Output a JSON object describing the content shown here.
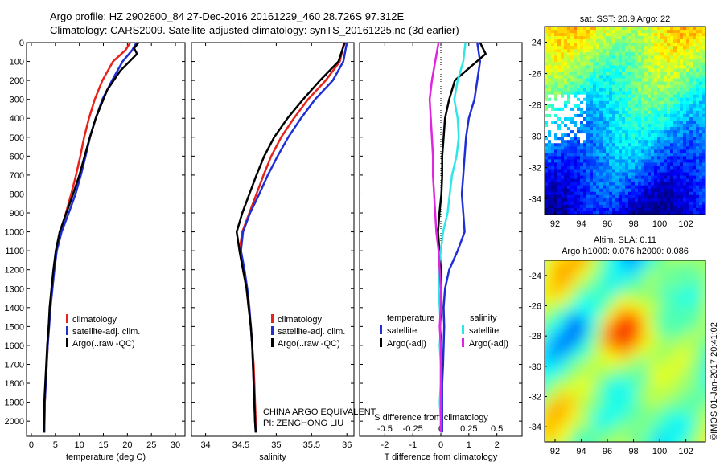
{
  "header": {
    "line1": "Argo profile: HZ 2902600_84 27-Dec-2016 20161229_460 28.726S 97.312E",
    "line2": "Climatology: CARS2009. Satellite-adjusted climatology: synTS_20161225.nc (3d earlier)"
  },
  "colors": {
    "red": "#e8231c",
    "blue": "#1f2fd6",
    "black": "#000000",
    "cyan": "#2ee6e6",
    "magenta": "#e024e0"
  },
  "chart_data": [
    {
      "type": "line",
      "title": "",
      "xlabel": "temperature (deg C)",
      "ylabel": "",
      "xlim": [
        -1,
        32
      ],
      "ylim": [
        2080,
        0
      ],
      "y_inverted": true,
      "x_ticks": [
        0,
        5,
        10,
        15,
        20,
        25,
        30
      ],
      "y_ticks": [
        0,
        100,
        200,
        300,
        400,
        500,
        600,
        700,
        800,
        900,
        1000,
        1100,
        1200,
        1300,
        1400,
        1500,
        1600,
        1700,
        1800,
        1900,
        2000
      ],
      "legend": {
        "position": "lower-center",
        "entries": [
          "climatology",
          "satellite-adj. clim.",
          "Argo(..raw -QC)"
        ]
      },
      "series": [
        {
          "name": "climatology",
          "color": "red",
          "x": [
            20.6,
            19.6,
            17.0,
            14.8,
            13.2,
            12.0,
            11.0,
            10.2,
            9.3,
            8.3,
            7.2,
            6.0,
            5.2,
            4.7,
            4.3,
            3.9,
            3.6,
            3.4,
            3.2,
            3.0,
            2.8,
            2.7
          ],
          "y": [
            0,
            40,
            100,
            200,
            300,
            400,
            500,
            600,
            700,
            800,
            900,
            1000,
            1100,
            1200,
            1300,
            1400,
            1500,
            1600,
            1700,
            1800,
            1900,
            2060
          ]
        },
        {
          "name": "satellite-adj. clim.",
          "color": "blue",
          "x": [
            21.9,
            21.0,
            19.0,
            16.8,
            14.8,
            13.4,
            12.2,
            11.3,
            10.3,
            9.2,
            7.8,
            6.3,
            5.3,
            4.8,
            4.4,
            4.0,
            3.7,
            3.4,
            3.2,
            3.0,
            2.8,
            2.7
          ],
          "y": [
            0,
            40,
            100,
            200,
            300,
            400,
            500,
            600,
            700,
            800,
            900,
            1000,
            1100,
            1200,
            1300,
            1400,
            1500,
            1600,
            1700,
            1800,
            1900,
            2060
          ]
        },
        {
          "name": "Argo(..raw -QC)",
          "color": "black",
          "x": [
            22.3,
            21.4,
            22.0,
            18.5,
            15.8,
            13.4,
            12.2,
            11.1,
            10.0,
            8.7,
            7.3,
            5.9,
            5.1,
            4.6,
            4.2,
            3.8,
            3.6,
            3.3,
            3.1,
            2.9,
            2.7,
            2.6
          ],
          "y": [
            0,
            30,
            60,
            150,
            250,
            400,
            500,
            600,
            700,
            800,
            900,
            1000,
            1100,
            1200,
            1300,
            1400,
            1500,
            1600,
            1700,
            1800,
            1900,
            2060
          ]
        }
      ]
    },
    {
      "type": "line",
      "title": "",
      "xlabel": "salinity",
      "ylabel": "",
      "xlim": [
        33.8,
        36.1
      ],
      "ylim": [
        2080,
        0
      ],
      "y_inverted": true,
      "x_ticks": [
        34,
        34.5,
        35,
        35.5,
        36
      ],
      "x_tick_labels": [
        "34",
        "34.5",
        "35",
        "35.5",
        "36"
      ],
      "legend": {
        "position": "lower-center",
        "entries": [
          "climatology",
          "satellite-adj. clim.",
          "Argo(..raw -QC)"
        ]
      },
      "annotations": [
        "CHINA ARGO EQUIVALENT",
        "PI: ZENGHONG LIU"
      ],
      "series": [
        {
          "name": "climatology",
          "color": "red",
          "x": [
            35.96,
            35.9,
            35.7,
            35.45,
            35.25,
            35.07,
            34.93,
            34.82,
            34.72,
            34.62,
            34.52,
            34.48,
            34.53,
            34.58,
            34.61,
            34.64,
            34.66,
            34.68,
            34.69,
            34.7,
            34.71,
            34.72
          ],
          "y": [
            0,
            100,
            200,
            300,
            400,
            500,
            600,
            700,
            800,
            900,
            1000,
            1100,
            1200,
            1300,
            1400,
            1500,
            1600,
            1700,
            1800,
            1900,
            2000,
            2060
          ]
        },
        {
          "name": "satellite-adj. clim.",
          "color": "blue",
          "x": [
            36.0,
            35.95,
            35.8,
            35.55,
            35.35,
            35.17,
            35.02,
            34.88,
            34.76,
            34.63,
            34.53,
            34.5,
            34.55,
            34.59,
            34.62,
            34.64,
            34.66,
            34.67,
            34.68,
            34.69,
            34.7,
            34.71
          ],
          "y": [
            0,
            100,
            200,
            300,
            400,
            500,
            600,
            700,
            800,
            900,
            1000,
            1100,
            1200,
            1300,
            1400,
            1500,
            1600,
            1700,
            1800,
            1900,
            2000,
            2060
          ]
        },
        {
          "name": "Argo(..raw -QC)",
          "color": "black",
          "x": [
            35.97,
            35.88,
            35.62,
            35.38,
            35.16,
            34.97,
            34.83,
            34.72,
            34.62,
            34.52,
            34.44,
            34.48,
            34.53,
            34.58,
            34.61,
            34.64,
            34.66,
            34.67,
            34.68,
            34.69,
            34.7,
            34.71
          ],
          "y": [
            0,
            100,
            200,
            300,
            400,
            500,
            600,
            700,
            800,
            900,
            1000,
            1100,
            1200,
            1300,
            1400,
            1500,
            1600,
            1700,
            1800,
            1900,
            2000,
            2060
          ]
        }
      ]
    },
    {
      "type": "line",
      "title": "",
      "xlabel": "T difference from climatology",
      "xlabel_top": "S difference from climatology",
      "ylabel": "",
      "xlim": [
        -2.9,
        2.9
      ],
      "ylim": [
        2080,
        0
      ],
      "y_inverted": true,
      "x_ticks": [
        -2,
        -1,
        0,
        1,
        2
      ],
      "x_ticks_top": [
        -0.5,
        -0.25,
        0,
        0.25,
        0.5
      ],
      "x_tick_labels_top": [
        "-0.5",
        "-0.25",
        "0",
        "0.25",
        "0.5"
      ],
      "legend": {
        "position": "lower-center",
        "entries": [
          "temperature",
          "satellite",
          "Argo(-adj)",
          "salinity",
          "satellite",
          "Argo(-adj)"
        ]
      },
      "series": [
        {
          "name": "satellite",
          "group": "temperature",
          "color": "blue",
          "x": [
            1.3,
            1.4,
            1.3,
            1.2,
            1.0,
            0.9,
            0.85,
            0.8,
            0.75,
            0.8,
            0.85,
            0.6,
            0.3,
            0.15,
            0.1,
            0.12,
            0.1,
            0.08,
            0.05,
            0.05,
            0.05,
            0.05
          ],
          "y": [
            0,
            100,
            200,
            300,
            400,
            500,
            600,
            700,
            800,
            900,
            1000,
            1100,
            1200,
            1300,
            1400,
            1500,
            1600,
            1700,
            1800,
            1900,
            2000,
            2060
          ]
        },
        {
          "name": "Argo(-adj)",
          "group": "temperature",
          "color": "black",
          "x": [
            1.4,
            1.6,
            0.5,
            0.3,
            0.15,
            0.1,
            0.05,
            0.05,
            0.02,
            -0.05,
            -0.1,
            -0.05,
            0.0,
            0.02,
            0.03,
            0.02,
            0.02,
            0.03,
            0.02,
            0.02,
            0.02,
            0.02
          ],
          "y": [
            0,
            60,
            200,
            300,
            400,
            500,
            600,
            700,
            800,
            900,
            1000,
            1100,
            1200,
            1300,
            1400,
            1500,
            1600,
            1700,
            1800,
            1900,
            2000,
            2060
          ]
        },
        {
          "name": "satellite",
          "group": "salinity",
          "color": "cyan",
          "x": [
            0.22,
            0.2,
            0.15,
            0.12,
            0.15,
            0.16,
            0.14,
            0.1,
            0.08,
            0.06,
            0.02,
            0.0,
            -0.02,
            -0.02,
            -0.01,
            0.0,
            -0.01,
            0.0,
            0.0,
            -0.01,
            0.0,
            0.0
          ],
          "y": [
            0,
            100,
            200,
            300,
            400,
            500,
            600,
            700,
            800,
            900,
            1000,
            1100,
            1200,
            1300,
            1400,
            1500,
            1600,
            1700,
            1800,
            1900,
            2000,
            2060
          ]
        },
        {
          "name": "Argo(-adj)",
          "group": "salinity",
          "color": "magenta",
          "x": [
            -0.02,
            -0.05,
            -0.08,
            -0.1,
            -0.09,
            -0.08,
            -0.07,
            -0.07,
            -0.06,
            -0.05,
            -0.04,
            -0.02,
            -0.01,
            0.0,
            0.0,
            -0.01,
            0.0,
            0.0,
            0.0,
            0.0,
            0.0,
            0.0
          ],
          "y": [
            0,
            100,
            200,
            300,
            400,
            500,
            600,
            700,
            800,
            900,
            1000,
            1100,
            1200,
            1300,
            1400,
            1500,
            1600,
            1700,
            1800,
            1900,
            2000,
            2060
          ]
        }
      ]
    },
    {
      "type": "heatmap",
      "title": "sat. SST: 20.9 Argo: 22",
      "xlim": [
        91.2,
        103.5
      ],
      "ylim": [
        -35,
        -23
      ],
      "x_ticks": [
        92,
        94,
        96,
        98,
        100,
        102
      ],
      "y_ticks": [
        -24,
        -26,
        -28,
        -30,
        -32,
        -34
      ],
      "colormap": "jet"
    },
    {
      "type": "heatmap",
      "title": "Altim. SLA: 0.11",
      "subtitle": "Argo h1000: 0.076 h2000: 0.086",
      "xlim": [
        91.2,
        103.5
      ],
      "ylim": [
        -35,
        -23
      ],
      "x_ticks": [
        92,
        94,
        96,
        98,
        100,
        102
      ],
      "y_ticks": [
        -24,
        -26,
        -28,
        -30,
        -32,
        -34
      ],
      "colormap": "jet"
    }
  ],
  "side_label": "©IMOS 01-Jan-2017 20:41:02"
}
